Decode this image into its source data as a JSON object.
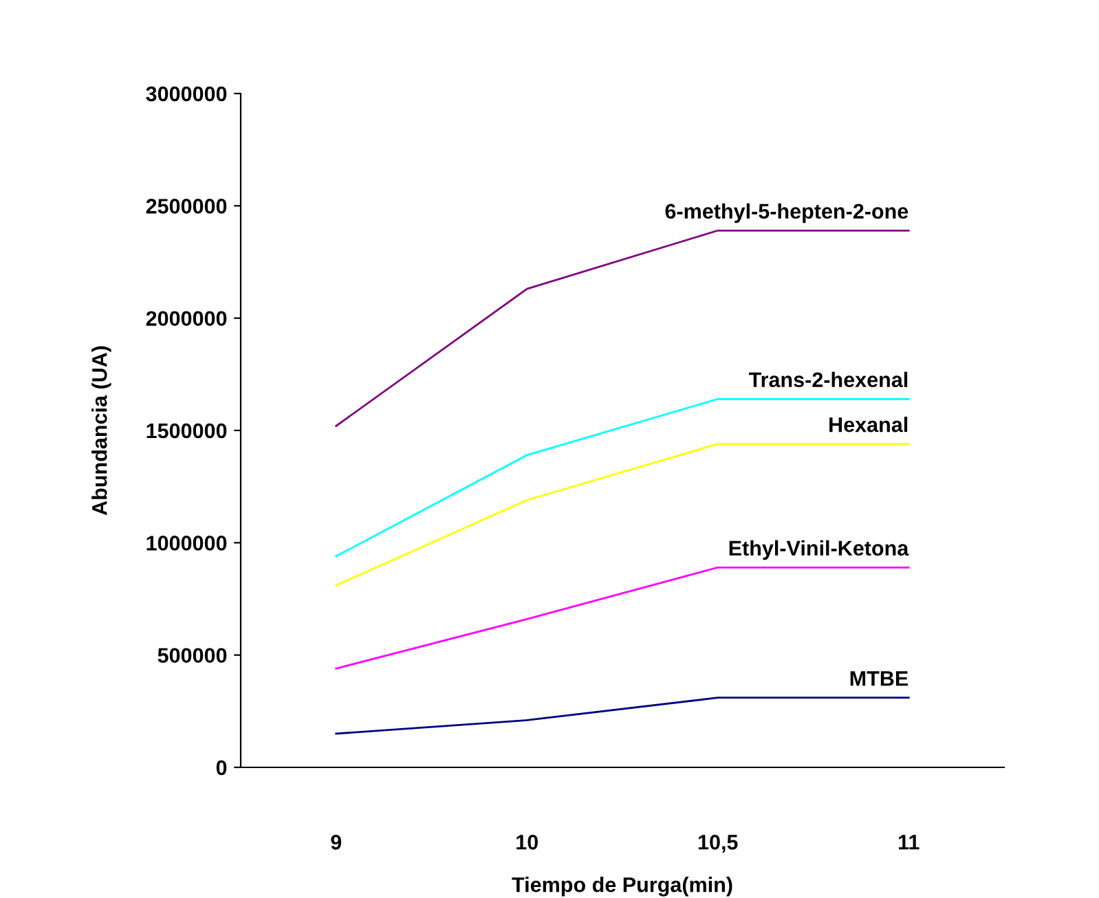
{
  "chart_data": {
    "type": "line",
    "xlabel": "Tiempo de Purga(min)",
    "ylabel": "Abundancia (UA)",
    "categories": [
      "9",
      "10",
      "10,5",
      "11"
    ],
    "series": [
      {
        "name": "6-methyl-5-hepten-2-one",
        "color": "#800080",
        "values": [
          1520000,
          2130000,
          2390000,
          2390000
        ]
      },
      {
        "name": "Trans-2-hexenal",
        "color": "#00ffff",
        "values": [
          940000,
          1390000,
          1640000,
          1640000
        ]
      },
      {
        "name": "Hexanal",
        "color": "#ffff00",
        "values": [
          810000,
          1190000,
          1440000,
          1440000
        ]
      },
      {
        "name": "Ethyl-Vinil-Ketona",
        "color": "#ff00ff",
        "values": [
          440000,
          660000,
          890000,
          890000
        ]
      },
      {
        "name": "MTBE",
        "color": "#000080",
        "values": [
          150000,
          210000,
          310000,
          310000
        ]
      }
    ],
    "ylim": [
      0,
      3000000
    ],
    "yticks": [
      0,
      500000,
      1000000,
      1500000,
      2000000,
      2500000,
      3000000
    ],
    "grid": false,
    "legend": false,
    "marker": "none",
    "line_style": "solid"
  }
}
